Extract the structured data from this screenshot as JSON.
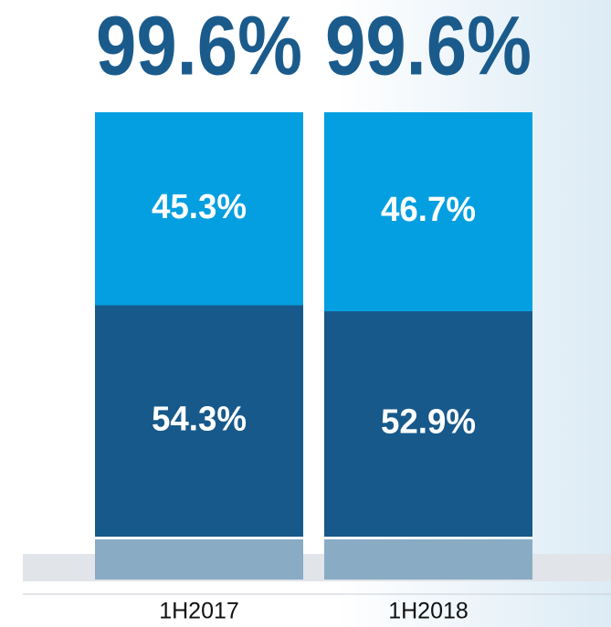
{
  "chart_data": {
    "type": "stacked_bar",
    "categories": [
      "1H2017",
      "1H2018"
    ],
    "totals": [
      99.6,
      99.6
    ],
    "total_labels": [
      "99.6%",
      "99.6%"
    ],
    "series": [
      {
        "color": "#17598a",
        "values": [
          54.3,
          52.9
        ],
        "value_labels": [
          "54.3%",
          "52.9%"
        ]
      },
      {
        "color": "#049fe0",
        "values": [
          45.3,
          46.7
        ],
        "value_labels": [
          "45.3%",
          "46.7%"
        ]
      }
    ]
  }
}
